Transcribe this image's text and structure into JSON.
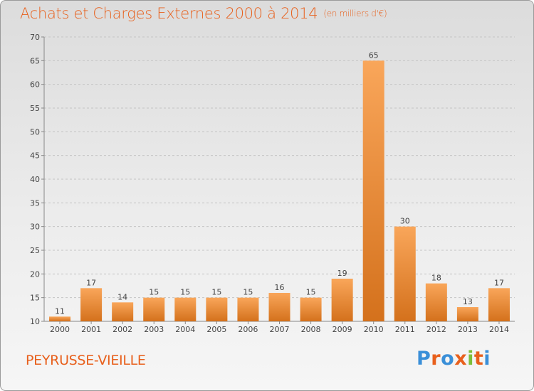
{
  "header": {
    "title": "Achats et Charges Externes 2000 à 2014",
    "subtitle": "(en milliers d'€)"
  },
  "footer": {
    "commune": "PEYRUSSE-VIEILLE",
    "logo": "Proxiti"
  },
  "colors": {
    "accent": "#e8601c",
    "bar_light": "#f9a65a",
    "bar_dark": "#d4711c",
    "logo_letters": [
      "#3a8fd8",
      "#e8601c",
      "#3a8fd8",
      "#e8601c",
      "#7cbf3a",
      "#e8601c",
      "#3a8fd8"
    ]
  },
  "chart_data": {
    "type": "bar",
    "categories": [
      "2000",
      "2001",
      "2002",
      "2003",
      "2004",
      "2005",
      "2006",
      "2007",
      "2008",
      "2009",
      "2010",
      "2011",
      "2012",
      "2013",
      "2014"
    ],
    "values": [
      11,
      17,
      14,
      15,
      15,
      15,
      15,
      16,
      15,
      19,
      65,
      30,
      18,
      13,
      17
    ],
    "ylim": [
      10,
      70
    ],
    "yticks": [
      10,
      15,
      20,
      25,
      30,
      35,
      40,
      45,
      50,
      55,
      60,
      65,
      70
    ],
    "grid": "horizontal dashed",
    "data_labels": true
  }
}
